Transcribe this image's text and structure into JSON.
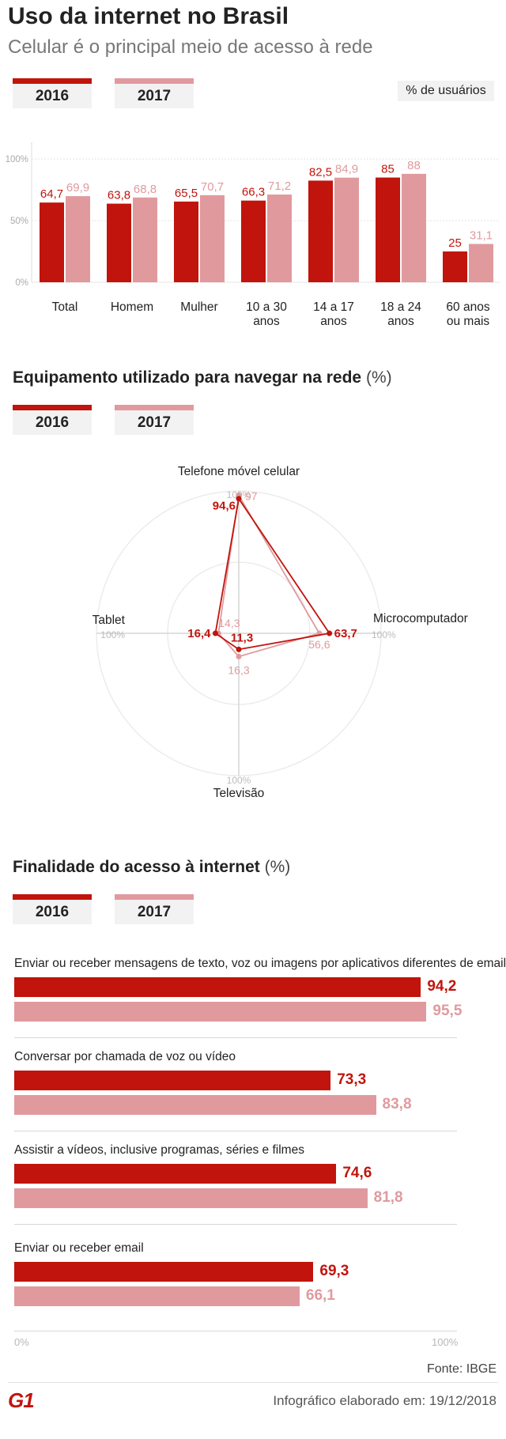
{
  "header": {
    "title": "Uso da internet no Brasil",
    "subtitle": "Celular é o principal meio de acesso à rede"
  },
  "legend": {
    "year1": "2016",
    "year2": "2017"
  },
  "colors": {
    "y2016": "#c1140c",
    "y2017": "#e09a9e"
  },
  "chart_data": [
    {
      "type": "bar",
      "unit_note": "% de usuários",
      "categories": [
        "Total",
        "Homem",
        "Mulher",
        "10 a 30\nanos",
        "14 a 17\nanos",
        "18 a 24\nanos",
        "60 anos\nou mais"
      ],
      "series": [
        {
          "name": "2016",
          "values": [
            64.7,
            63.8,
            65.5,
            66.3,
            82.5,
            85,
            25
          ],
          "labels": [
            "64,7",
            "63,8",
            "65,5",
            "66,3",
            "82,5",
            "85",
            "25"
          ]
        },
        {
          "name": "2017",
          "values": [
            69.9,
            68.8,
            70.7,
            71.2,
            84.9,
            88,
            31.1
          ],
          "labels": [
            "69,9",
            "68,8",
            "70,7",
            "71,2",
            "84,9",
            "88",
            "31,1"
          ]
        }
      ],
      "yticks": [
        "100%",
        "50%",
        "0%"
      ],
      "ylim": [
        0,
        120
      ]
    },
    {
      "type": "radar",
      "title": "Equipamento utilizado para navegar na rede",
      "unit": "(%)",
      "axes": [
        "Telefone móvel celular",
        "Microcomputador",
        "Televisão",
        "Tablet"
      ],
      "axis_max_label": "100%",
      "series": [
        {
          "name": "2016",
          "values": [
            94.6,
            63.7,
            11.3,
            16.4
          ],
          "labels": [
            "94,6",
            "63,7",
            "11,3",
            "16,4"
          ]
        },
        {
          "name": "2017",
          "values": [
            97,
            56.6,
            16.3,
            14.3
          ],
          "labels": [
            "97",
            "56,6",
            "16,3",
            "14,3"
          ]
        }
      ]
    },
    {
      "type": "bar",
      "orientation": "horizontal",
      "title": "Finalidade do acesso à internet",
      "unit": "(%)",
      "categories": [
        "Enviar ou receber mensagens de texto, voz ou imagens por aplicativos diferentes de email",
        "Conversar por chamada de voz ou vídeo",
        "Assistir a vídeos, inclusive programas, séries e filmes",
        "Enviar ou receber email"
      ],
      "series": [
        {
          "name": "2016",
          "values": [
            94.2,
            73.3,
            74.6,
            69.3
          ],
          "labels": [
            "94,2",
            "73,3",
            "74,6",
            "69,3"
          ]
        },
        {
          "name": "2017",
          "values": [
            95.5,
            83.8,
            81.8,
            66.1
          ],
          "labels": [
            "95,5",
            "83,8",
            "81,8",
            "66,1"
          ]
        }
      ],
      "xticks": [
        "0%",
        "100%"
      ],
      "xlim": [
        0,
        100
      ]
    }
  ],
  "footer": {
    "source": "Fonte: IBGE",
    "logo_text": "G1",
    "credit": "Infográfico elaborado em: 19/12/2018"
  }
}
